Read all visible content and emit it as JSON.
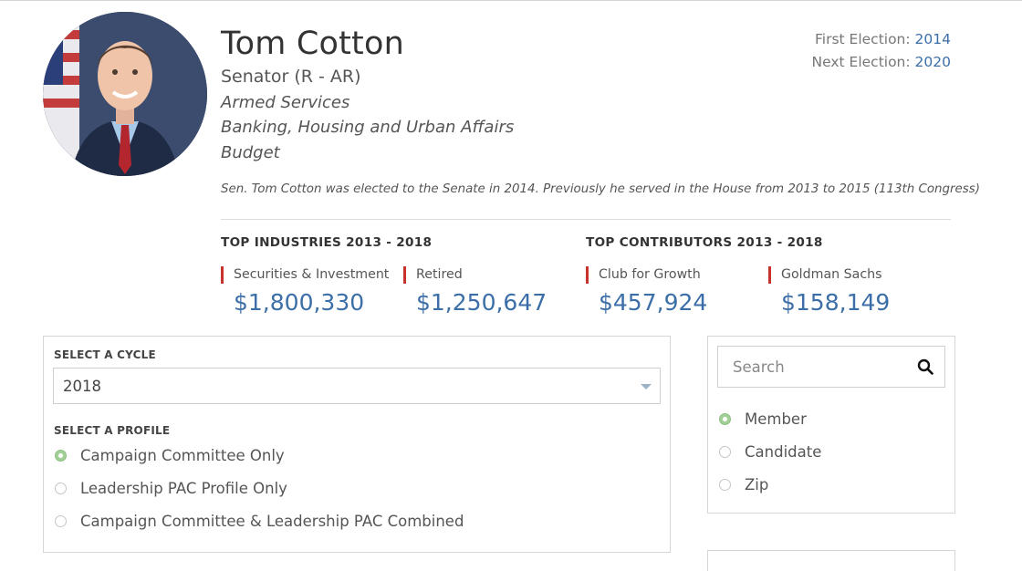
{
  "profile": {
    "name": "Tom Cotton",
    "title": "Senator (R - AR)",
    "committees": [
      "Armed Services",
      "Banking, Housing and Urban Affairs",
      "Budget"
    ],
    "bio": "Sen. Tom Cotton was elected to the Senate in 2014. Previously he served in the House from 2013 to 2015 (113th Congress)"
  },
  "elections": {
    "first_label": "First Election:",
    "first_year": "2014",
    "next_label": "Next Election:",
    "next_year": "2020"
  },
  "industries": {
    "heading": "TOP INDUSTRIES 2013 - 2018",
    "items": [
      {
        "label": "Securities & Investment",
        "value": "$1,800,330"
      },
      {
        "label": "Retired",
        "value": "$1,250,647"
      }
    ]
  },
  "contributors": {
    "heading": "TOP CONTRIBUTORS 2013 - 2018",
    "items": [
      {
        "label": "Club for Growth",
        "value": "$457,924"
      },
      {
        "label": "Goldman Sachs",
        "value": "$158,149"
      }
    ]
  },
  "cycle": {
    "caption": "SELECT A CYCLE",
    "selected": "2018"
  },
  "profile_select": {
    "caption": "SELECT A PROFILE",
    "options": [
      {
        "label": "Campaign Committee Only",
        "selected": true
      },
      {
        "label": "Leadership PAC Profile Only",
        "selected": false
      },
      {
        "label": "Campaign Committee & Leadership PAC Combined",
        "selected": false
      }
    ]
  },
  "search": {
    "placeholder": "Search",
    "options": [
      {
        "label": "Member",
        "selected": true
      },
      {
        "label": "Candidate",
        "selected": false
      },
      {
        "label": "Zip",
        "selected": false
      }
    ]
  },
  "colors": {
    "accent_blue": "#3c6ea8",
    "accent_red": "#c8322d",
    "radio_green": "#a4d097"
  },
  "icons": {
    "search": "search-icon",
    "caret": "chevron-down-icon"
  }
}
